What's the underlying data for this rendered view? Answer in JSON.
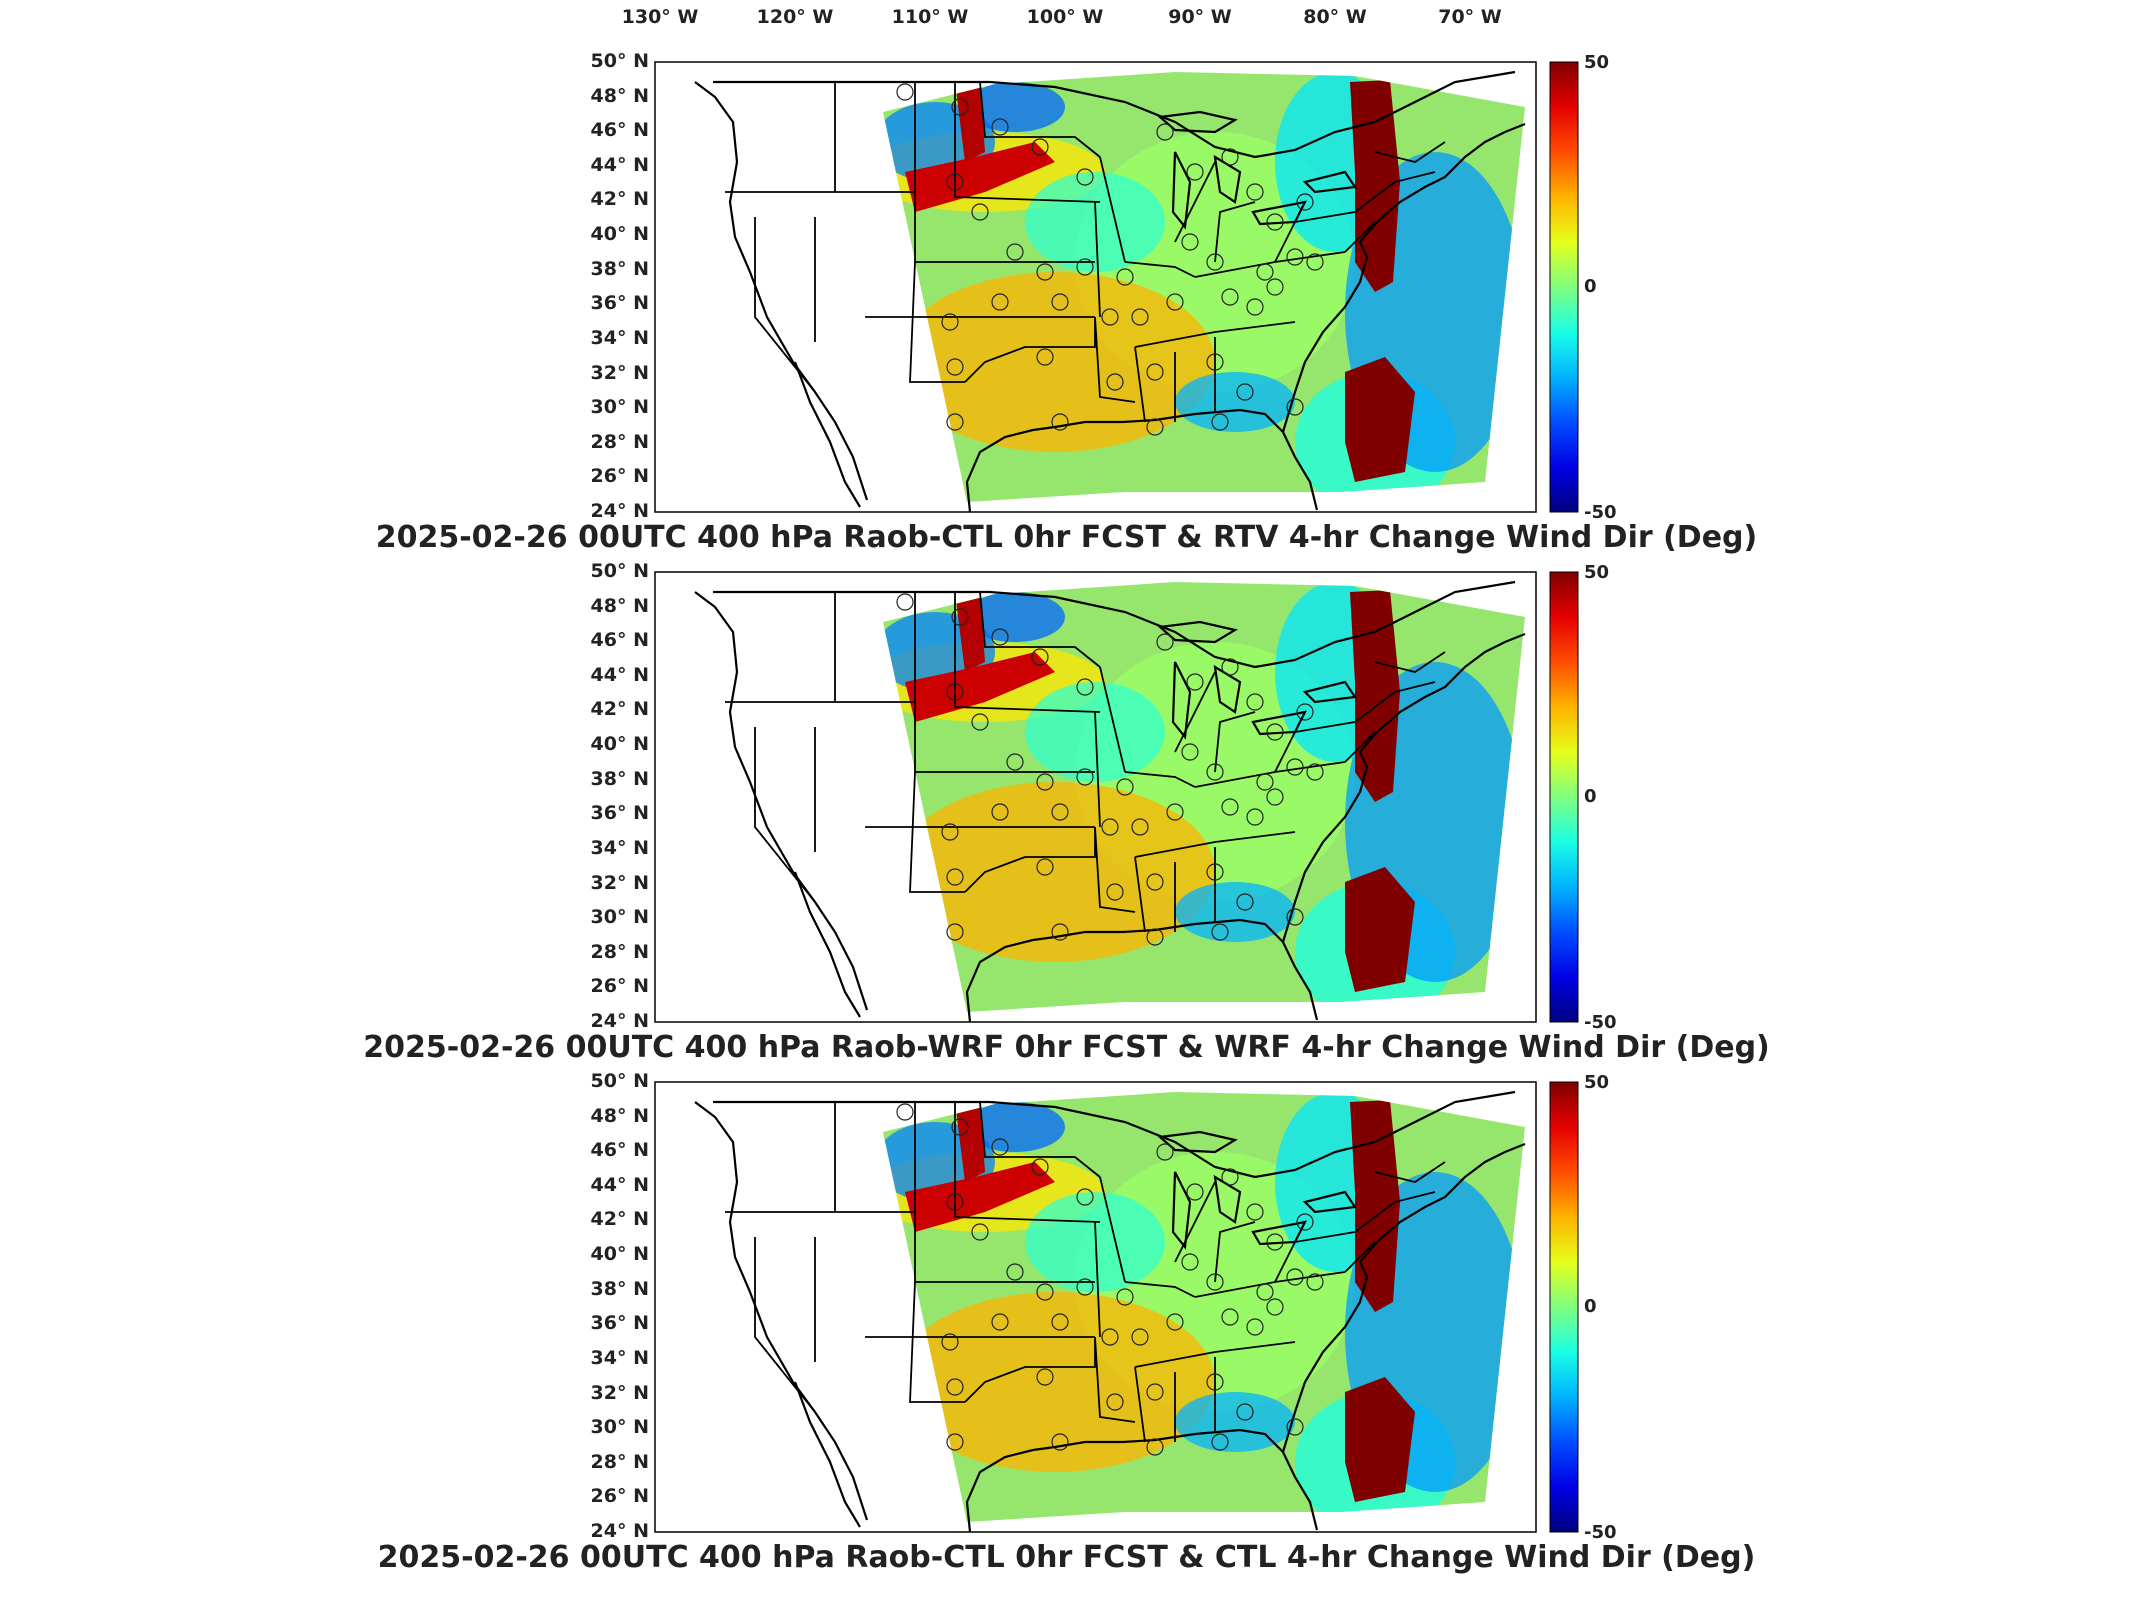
{
  "lon_labels": [
    "130° W",
    "120° W",
    "110° W",
    "100° W",
    "90° W",
    "80° W",
    "70° W"
  ],
  "lat_labels": [
    "50° N",
    "48° N",
    "46° N",
    "44° N",
    "42° N",
    "40° N",
    "38° N",
    "36° N",
    "34° N",
    "32° N",
    "30° N",
    "28° N",
    "26° N",
    "24° N"
  ],
  "colorbar": {
    "max_label": "50",
    "mid_label": "0",
    "min_label": "-50",
    "min": -50,
    "max": 50
  },
  "panels": [
    {
      "title": "2025-02-26 00UTC 400 hPa Raob-CTL 0hr FCST & RTV 4-hr Change Wind Dir (Deg)"
    },
    {
      "title": "2025-02-26 00UTC 400 hPa Raob-WRF 0hr FCST & WRF 4-hr Change Wind Dir (Deg)"
    },
    {
      "title": "2025-02-26 00UTC 400 hPa Raob-CTL 0hr FCST & CTL 4-hr Change Wind Dir (Deg)"
    }
  ],
  "colors": {
    "high": "#800000",
    "mid": "#40e080",
    "low": "#00008f"
  },
  "icons": [
    "raob-station-circle-marker"
  ]
}
